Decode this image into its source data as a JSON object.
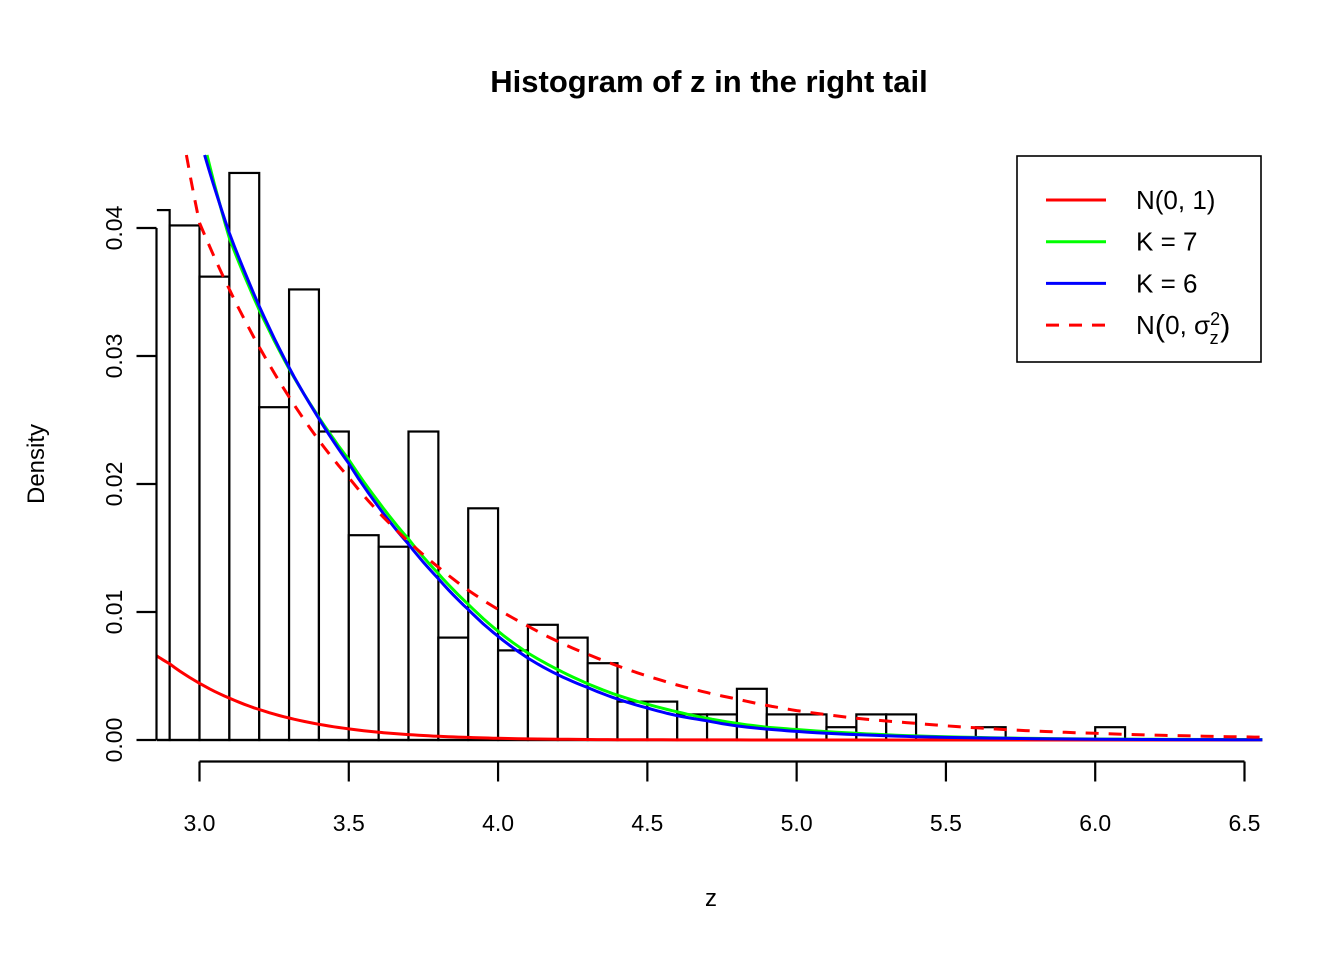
{
  "chart_data": {
    "type": "bar",
    "subtype": "histogram-with-density-curves",
    "title": "Histogram of z in the right tail",
    "xlabel": "z",
    "ylabel": "Density",
    "xlim": [
      2.855,
      6.56
    ],
    "ylim": [
      0,
      0.0457
    ],
    "grid": false,
    "x_tick_labels": [
      "3.0",
      "3.5",
      "4.0",
      "4.5",
      "5.0",
      "5.5",
      "6.0",
      "6.5"
    ],
    "x_tick_values": [
      3.0,
      3.5,
      4.0,
      4.5,
      5.0,
      5.5,
      6.0,
      6.5
    ],
    "y_tick_labels": [
      "0.00",
      "0.01",
      "0.02",
      "0.03",
      "0.04"
    ],
    "y_tick_values": [
      0,
      0.01,
      0.02,
      0.03,
      0.04
    ],
    "bins": {
      "start": 2.8,
      "width": 0.1,
      "note": "density scale; first bin clipped by left plot edge at z=2.855",
      "densities": [
        0.0414,
        0.0402,
        0.0362,
        0.0443,
        0.026,
        0.0352,
        0.0241,
        0.016,
        0.0151,
        0.0241,
        0.008,
        0.0181,
        0.007,
        0.009,
        0.008,
        0.006,
        0.003,
        0.003,
        0.002,
        0.002,
        0.004,
        0.002,
        0.002,
        0.001,
        0.002,
        0.002,
        0,
        0,
        0.001,
        0,
        0,
        0,
        0.001
      ]
    },
    "curves": [
      {
        "name": "N(0, 1)",
        "color": "#ff0000",
        "dashed": false,
        "points": [
          [
            2.855,
            0.0066
          ],
          [
            2.9,
            0.00595
          ],
          [
            3.0,
            0.00443
          ],
          [
            3.1,
            0.00327
          ],
          [
            3.2,
            0.00238
          ],
          [
            3.3,
            0.00172
          ],
          [
            3.4,
            0.00123
          ],
          [
            3.5,
            0.00087
          ],
          [
            3.6,
            0.00061
          ],
          [
            3.7,
            0.00042
          ],
          [
            3.8,
            0.00029
          ],
          [
            3.9,
            0.0002
          ],
          [
            4.0,
            0.000134
          ],
          [
            4.2,
            5.9e-05
          ],
          [
            4.4,
            2.5e-05
          ],
          [
            4.7,
            6.5e-06
          ],
          [
            5.0,
            1.5e-06
          ],
          [
            5.5,
            2e-07
          ],
          [
            6.56,
            2e-08
          ]
        ]
      },
      {
        "name": "K = 7",
        "color": "#00ff00",
        "dashed": false,
        "points": [
          [
            3.025,
            0.0457
          ],
          [
            3.1,
            0.0392
          ],
          [
            3.2,
            0.0336
          ],
          [
            3.3,
            0.029
          ],
          [
            3.4,
            0.0252
          ],
          [
            3.5,
            0.0219
          ],
          [
            3.6,
            0.0186
          ],
          [
            3.7,
            0.0157
          ],
          [
            3.8,
            0.013
          ],
          [
            3.9,
            0.0106
          ],
          [
            4.0,
            0.0085
          ],
          [
            4.1,
            0.0068
          ],
          [
            4.2,
            0.0055
          ],
          [
            4.3,
            0.0044
          ],
          [
            4.4,
            0.0035
          ],
          [
            4.5,
            0.0028
          ],
          [
            4.6,
            0.0022
          ],
          [
            4.7,
            0.0017
          ],
          [
            4.8,
            0.0013
          ],
          [
            4.9,
            0.001
          ],
          [
            5.0,
            0.00082
          ],
          [
            5.2,
            0.00052
          ],
          [
            5.4,
            0.00032
          ],
          [
            5.7,
            0.00016
          ],
          [
            6.0,
            8e-05
          ],
          [
            6.56,
            3e-05
          ]
        ]
      },
      {
        "name": "K = 6",
        "color": "#0000ff",
        "dashed": false,
        "points": [
          [
            3.017,
            0.0457
          ],
          [
            3.1,
            0.0396
          ],
          [
            3.2,
            0.0339
          ],
          [
            3.3,
            0.0291
          ],
          [
            3.4,
            0.0251
          ],
          [
            3.5,
            0.0216
          ],
          [
            3.6,
            0.0182
          ],
          [
            3.7,
            0.0153
          ],
          [
            3.8,
            0.0126
          ],
          [
            3.9,
            0.0102
          ],
          [
            4.0,
            0.0081
          ],
          [
            4.1,
            0.0064
          ],
          [
            4.2,
            0.0051
          ],
          [
            4.3,
            0.0041
          ],
          [
            4.4,
            0.0032
          ],
          [
            4.5,
            0.0025
          ],
          [
            4.6,
            0.0019
          ],
          [
            4.7,
            0.0015
          ],
          [
            4.8,
            0.0011
          ],
          [
            4.9,
            0.00085
          ],
          [
            5.0,
            0.00067
          ],
          [
            5.2,
            0.00042
          ],
          [
            5.4,
            0.00026
          ],
          [
            5.7,
            0.00013
          ],
          [
            6.0,
            6e-05
          ],
          [
            6.56,
            2e-05
          ]
        ]
      },
      {
        "name": "N(0, sigma_z^2)",
        "color": "#ff0000",
        "dashed": true,
        "points": [
          [
            2.956,
            0.0457
          ],
          [
            3.0,
            0.0404
          ],
          [
            3.1,
            0.0352
          ],
          [
            3.2,
            0.0307
          ],
          [
            3.3,
            0.0268
          ],
          [
            3.4,
            0.0234
          ],
          [
            3.5,
            0.0205
          ],
          [
            3.6,
            0.0178
          ],
          [
            3.7,
            0.0155
          ],
          [
            3.8,
            0.0135
          ],
          [
            3.9,
            0.0117
          ],
          [
            4.0,
            0.0102
          ],
          [
            4.1,
            0.0089
          ],
          [
            4.2,
            0.0077
          ],
          [
            4.3,
            0.0067
          ],
          [
            4.4,
            0.0058
          ],
          [
            4.5,
            0.005
          ],
          [
            4.6,
            0.0043
          ],
          [
            4.7,
            0.0037
          ],
          [
            4.8,
            0.0032
          ],
          [
            4.9,
            0.0027
          ],
          [
            5.0,
            0.0023
          ],
          [
            5.2,
            0.0017
          ],
          [
            5.4,
            0.0013
          ],
          [
            5.6,
            0.00095
          ],
          [
            5.8,
            0.0007
          ],
          [
            6.0,
            0.00052
          ],
          [
            6.2,
            0.00038
          ],
          [
            6.4,
            0.00028
          ],
          [
            6.56,
            0.00022
          ]
        ]
      }
    ],
    "legend": {
      "position": "top-right",
      "entries": [
        {
          "label": "N(0, 1)",
          "color": "#ff0000",
          "dashed": false
        },
        {
          "label": "K = 7",
          "color": "#00ff00",
          "dashed": false
        },
        {
          "label": "K = 6",
          "color": "#0000ff",
          "dashed": false
        },
        {
          "label": "N(0, σz²)",
          "color": "#ff0000",
          "dashed": true,
          "label_parts": {
            "pre": "N",
            "open_paren": "(",
            "mid": "0, σ",
            "sup": "2",
            "sub": "z",
            "close_paren": ")"
          }
        }
      ]
    },
    "colors": {
      "bar_border": "#000000",
      "bar_fill": "#ffffff",
      "axis": "#000000",
      "background": "#ffffff"
    }
  }
}
